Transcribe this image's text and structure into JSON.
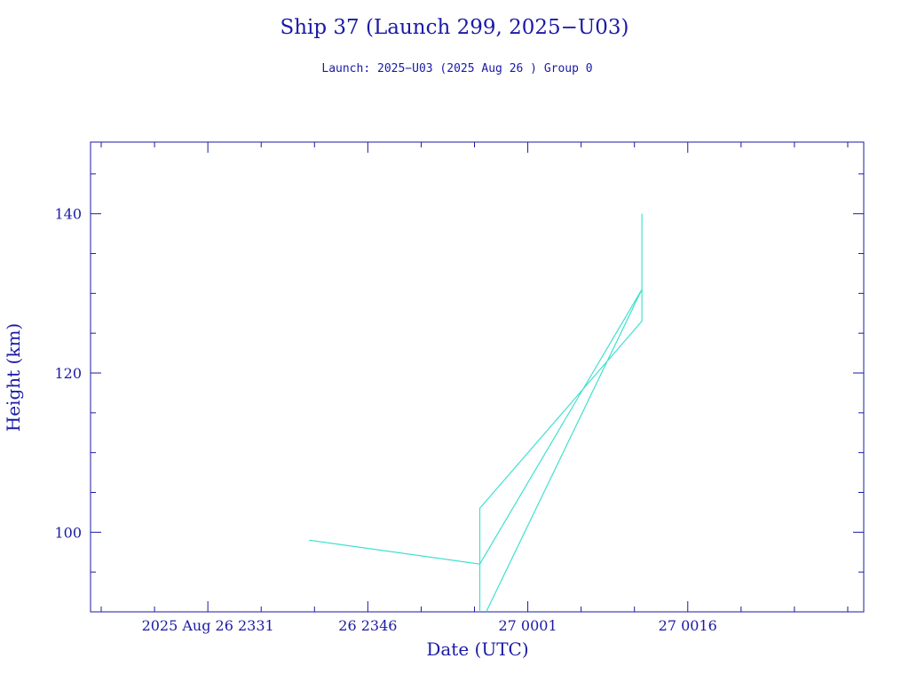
{
  "chart_data": {
    "type": "line",
    "title": "Ship 37 (Launch 299, 2025−U03)",
    "subtitle": "Launch: 2025−U03  (2025 Aug 26 )  Group 0",
    "xlabel": "Date (UTC)",
    "ylabel": "Height (km)",
    "x_ticks": [
      {
        "t": 4.5,
        "label": "2025 Aug 26  2331"
      },
      {
        "t": 19.5,
        "label": "26  2346"
      },
      {
        "t": 34.5,
        "label": "27  0001"
      },
      {
        "t": 49.5,
        "label": "27  0016"
      }
    ],
    "y_ticks": [
      100,
      120,
      140
    ],
    "xlim": [
      -6.5,
      66
    ],
    "ylim": [
      90,
      149
    ],
    "x_unit_note": "",
    "series": [
      {
        "values": [
          [
            14.0,
            99.0
          ],
          [
            30.0,
            96.0
          ],
          [
            45.2,
            130.5
          ],
          [
            45.2,
            140.0
          ]
        ]
      },
      {
        "values": [
          [
            30.0,
            90.0
          ],
          [
            30.0,
            103.0
          ],
          [
            45.2,
            126.5
          ],
          [
            45.2,
            130.5
          ],
          [
            30.6,
            90.0
          ]
        ]
      }
    ],
    "grid": false,
    "colors": {
      "frame": "#1a1aa6",
      "series": "#40e0d0"
    }
  }
}
